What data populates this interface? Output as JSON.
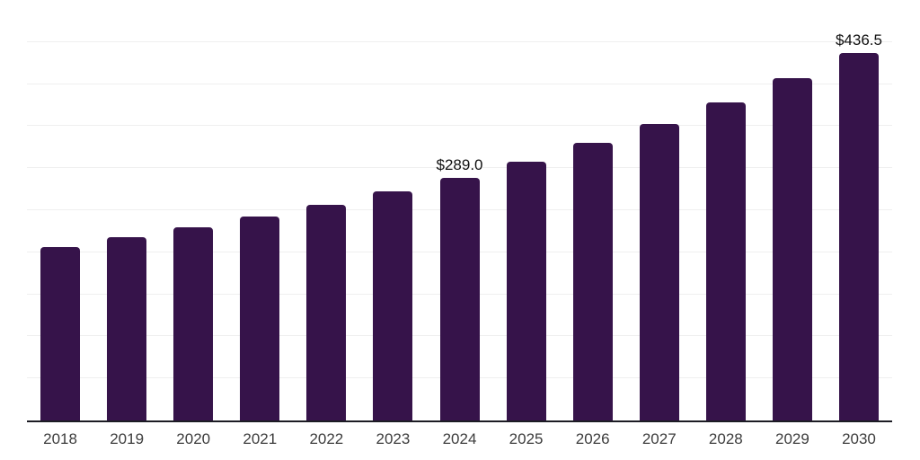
{
  "chart_data": {
    "type": "bar",
    "title": "",
    "xlabel": "",
    "ylabel": "",
    "categories": [
      "2018",
      "2019",
      "2020",
      "2021",
      "2022",
      "2023",
      "2024",
      "2025",
      "2026",
      "2027",
      "2028",
      "2029",
      "2030"
    ],
    "values": [
      206.0,
      218.0,
      230.0,
      242.5,
      256.5,
      272.5,
      289.0,
      308.0,
      330.0,
      352.5,
      378.0,
      407.0,
      436.5
    ],
    "data_labels": {
      "2024": "$289.0",
      "2030": "$436.5"
    },
    "ylim": [
      0,
      500
    ],
    "gridline_step": 50,
    "grid": true,
    "legend": false,
    "colors": {
      "background": "#ffffff",
      "bar": "#36134a",
      "axis_line": "#1c1c24",
      "gridline": "#efefef",
      "data_label": "#111111",
      "tick_label": "#3c3c3c"
    }
  }
}
